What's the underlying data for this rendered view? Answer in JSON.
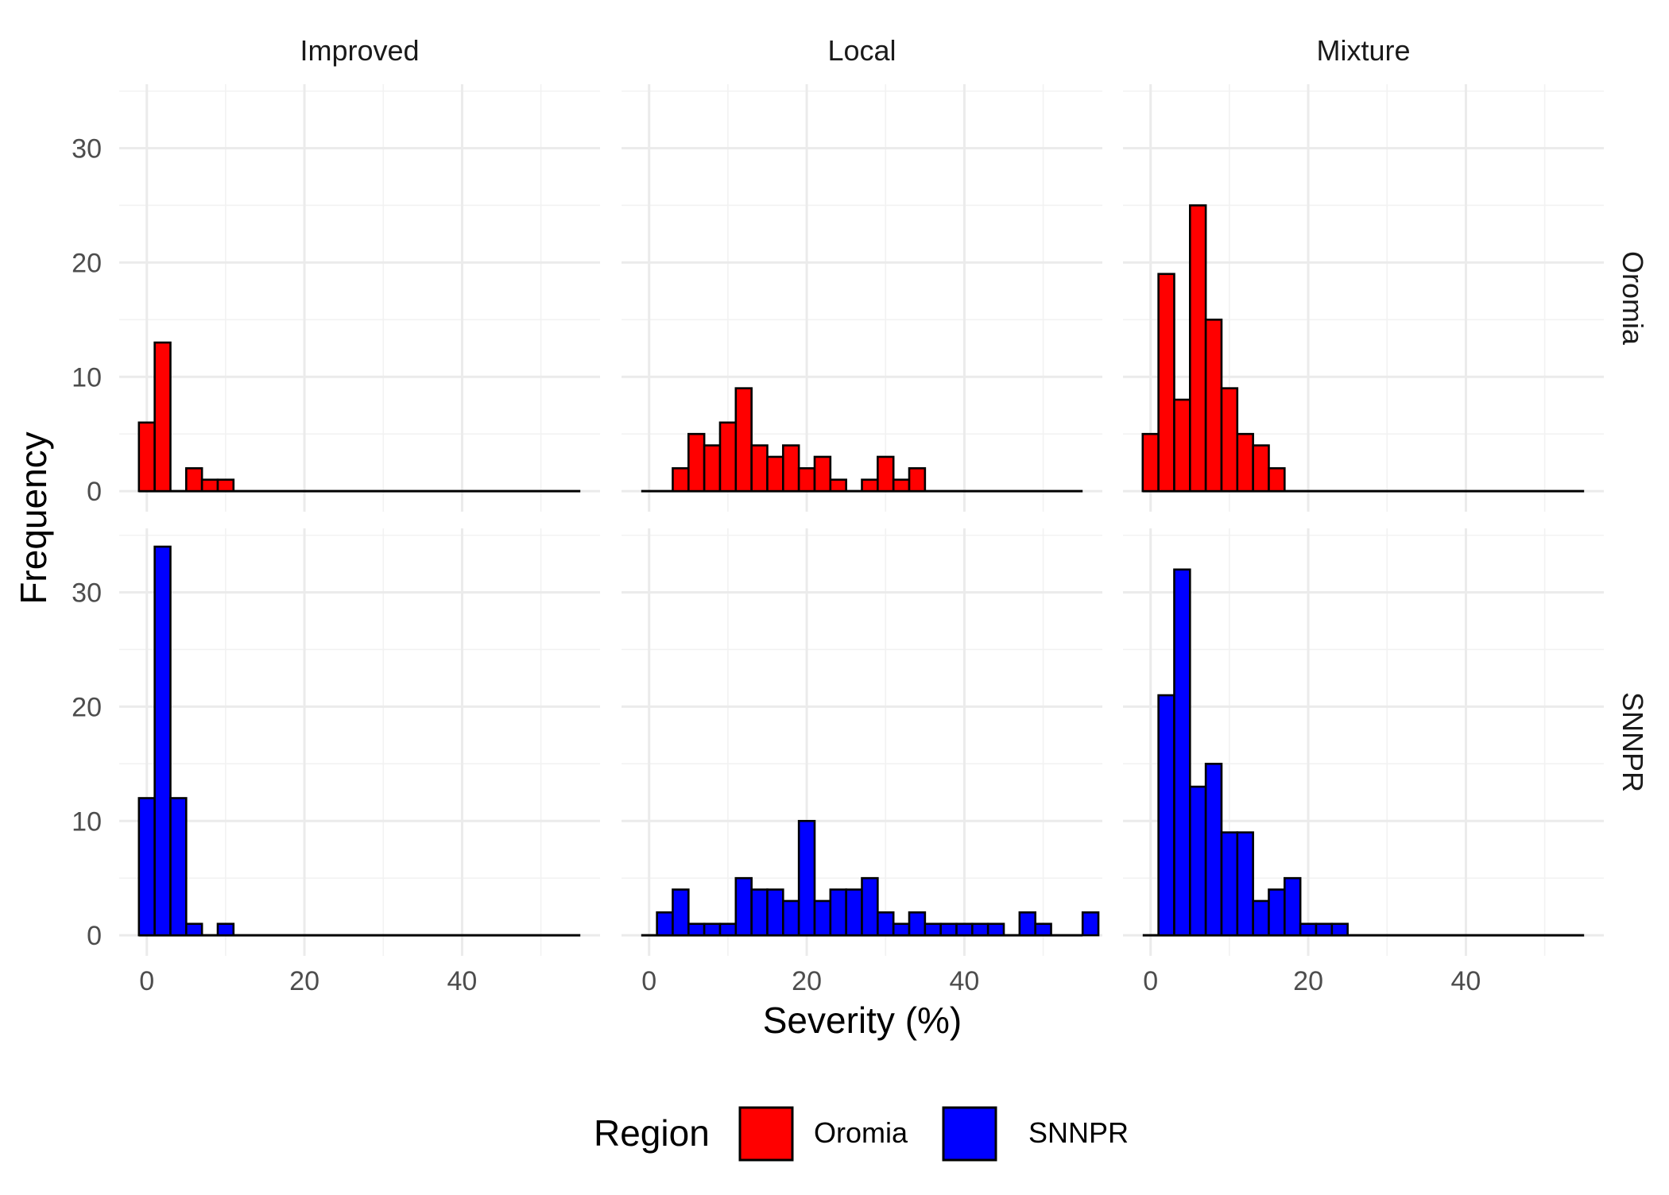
{
  "chart_data": {
    "type": "bar",
    "subtype": "faceted-histogram",
    "xlabel": "Severity (%)",
    "ylabel": "Frequency",
    "xlim": [
      -3.5,
      57.5
    ],
    "ylim": [
      -1.8,
      35.6
    ],
    "x_ticks": [
      0,
      20,
      40
    ],
    "y_ticks": [
      0,
      10,
      20,
      30
    ],
    "grid": true,
    "bin_width": 2,
    "baseline_range": [
      -1,
      55
    ],
    "columns": [
      "Improved",
      "Local",
      "Mixture"
    ],
    "rows": [
      "Oromia",
      "SNNPR"
    ],
    "legend": {
      "title": "Region",
      "position": "bottom",
      "items": [
        {
          "label": "Oromia",
          "color": "#ff0000"
        },
        {
          "label": "SNNPR",
          "color": "#0000ff"
        }
      ]
    },
    "panels": [
      {
        "column": "Improved",
        "row": "Oromia",
        "color": "#ff0000",
        "bins": [
          {
            "x": 0,
            "count": 6
          },
          {
            "x": 2,
            "count": 13
          },
          {
            "x": 6,
            "count": 2
          },
          {
            "x": 8,
            "count": 1
          },
          {
            "x": 10,
            "count": 1
          }
        ]
      },
      {
        "column": "Local",
        "row": "Oromia",
        "color": "#ff0000",
        "bins": [
          {
            "x": 4,
            "count": 2
          },
          {
            "x": 6,
            "count": 5
          },
          {
            "x": 8,
            "count": 4
          },
          {
            "x": 10,
            "count": 6
          },
          {
            "x": 12,
            "count": 9
          },
          {
            "x": 14,
            "count": 4
          },
          {
            "x": 16,
            "count": 3
          },
          {
            "x": 18,
            "count": 4
          },
          {
            "x": 20,
            "count": 2
          },
          {
            "x": 22,
            "count": 3
          },
          {
            "x": 24,
            "count": 1
          },
          {
            "x": 28,
            "count": 1
          },
          {
            "x": 30,
            "count": 3
          },
          {
            "x": 32,
            "count": 1
          },
          {
            "x": 34,
            "count": 2
          }
        ]
      },
      {
        "column": "Mixture",
        "row": "Oromia",
        "color": "#ff0000",
        "bins": [
          {
            "x": 0,
            "count": 5
          },
          {
            "x": 2,
            "count": 19
          },
          {
            "x": 4,
            "count": 8
          },
          {
            "x": 6,
            "count": 25
          },
          {
            "x": 8,
            "count": 15
          },
          {
            "x": 10,
            "count": 9
          },
          {
            "x": 12,
            "count": 5
          },
          {
            "x": 14,
            "count": 4
          },
          {
            "x": 16,
            "count": 2
          }
        ]
      },
      {
        "column": "Improved",
        "row": "SNNPR",
        "color": "#0000ff",
        "bins": [
          {
            "x": 0,
            "count": 12
          },
          {
            "x": 2,
            "count": 34
          },
          {
            "x": 4,
            "count": 12
          },
          {
            "x": 6,
            "count": 1
          },
          {
            "x": 10,
            "count": 1
          }
        ]
      },
      {
        "column": "Local",
        "row": "SNNPR",
        "color": "#0000ff",
        "bins": [
          {
            "x": 2,
            "count": 2
          },
          {
            "x": 4,
            "count": 4
          },
          {
            "x": 6,
            "count": 1
          },
          {
            "x": 8,
            "count": 1
          },
          {
            "x": 10,
            "count": 1
          },
          {
            "x": 12,
            "count": 5
          },
          {
            "x": 14,
            "count": 4
          },
          {
            "x": 16,
            "count": 4
          },
          {
            "x": 18,
            "count": 3
          },
          {
            "x": 20,
            "count": 10
          },
          {
            "x": 22,
            "count": 3
          },
          {
            "x": 24,
            "count": 4
          },
          {
            "x": 26,
            "count": 4
          },
          {
            "x": 28,
            "count": 5
          },
          {
            "x": 30,
            "count": 2
          },
          {
            "x": 32,
            "count": 1
          },
          {
            "x": 34,
            "count": 2
          },
          {
            "x": 36,
            "count": 1
          },
          {
            "x": 38,
            "count": 1
          },
          {
            "x": 40,
            "count": 1
          },
          {
            "x": 42,
            "count": 1
          },
          {
            "x": 44,
            "count": 1
          },
          {
            "x": 48,
            "count": 2
          },
          {
            "x": 50,
            "count": 1
          },
          {
            "x": 56,
            "count": 2
          }
        ]
      },
      {
        "column": "Mixture",
        "row": "SNNPR",
        "color": "#0000ff",
        "bins": [
          {
            "x": 2,
            "count": 21
          },
          {
            "x": 4,
            "count": 32
          },
          {
            "x": 6,
            "count": 13
          },
          {
            "x": 8,
            "count": 15
          },
          {
            "x": 10,
            "count": 9
          },
          {
            "x": 12,
            "count": 9
          },
          {
            "x": 14,
            "count": 3
          },
          {
            "x": 16,
            "count": 4
          },
          {
            "x": 18,
            "count": 5
          },
          {
            "x": 20,
            "count": 1
          },
          {
            "x": 22,
            "count": 1
          },
          {
            "x": 24,
            "count": 1
          }
        ]
      }
    ]
  }
}
